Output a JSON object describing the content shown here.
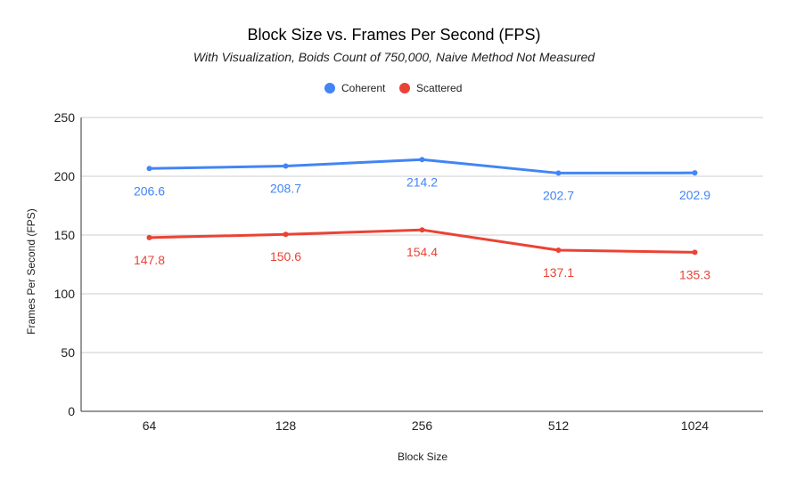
{
  "chart_data": {
    "type": "line",
    "title": "Block Size vs. Frames Per Second (FPS)",
    "subtitle": "With Visualization, Boids Count of 750,000, Naive Method Not Measured",
    "xlabel": "Block Size",
    "ylabel": "Frames Per Second (FPS)",
    "categories": [
      "64",
      "128",
      "256",
      "512",
      "1024"
    ],
    "ylim": [
      0,
      250
    ],
    "yticks": [
      0,
      50,
      100,
      150,
      200,
      250
    ],
    "grid": true,
    "legend_position": "top",
    "series": [
      {
        "name": "Coherent",
        "color": "#4285f4",
        "values": [
          206.6,
          208.7,
          214.2,
          202.7,
          202.9
        ]
      },
      {
        "name": "Scattered",
        "color": "#ea4335",
        "values": [
          147.8,
          150.6,
          154.4,
          137.1,
          135.3
        ]
      }
    ]
  }
}
